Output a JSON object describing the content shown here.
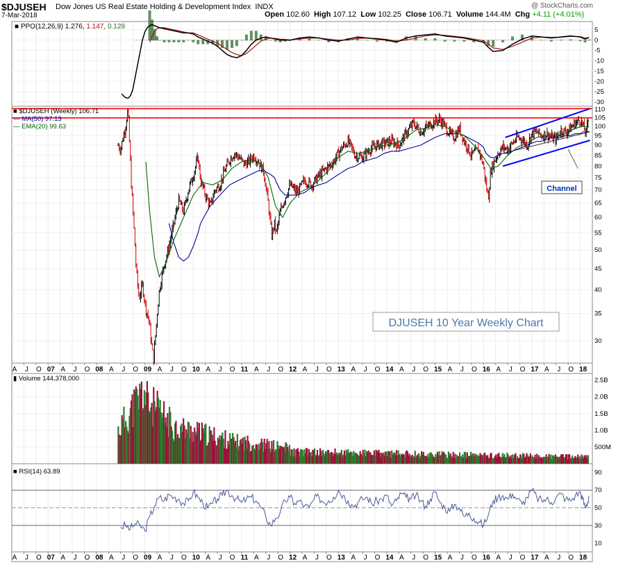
{
  "header": {
    "symbol": "$DJUSEH",
    "description": "Dow Jones US Real Estate Holding & Development Index",
    "exchange": "INDX",
    "date": "7-Mar-2018",
    "copyright": "@ StockCharts.com",
    "open_label": "Open",
    "open": "102.60",
    "high_label": "High",
    "high": "107.12",
    "low_label": "Low",
    "low": "102.25",
    "close_label": "Close",
    "close": "106.71",
    "volume_label": "Volume",
    "volume": "144.4M",
    "chg_label": "Chg",
    "chg": "+4.11 (+4.01%)",
    "chg_color": "#00a000"
  },
  "colors": {
    "up": "#000000",
    "down": "#cc0000",
    "ma50": "#000099",
    "ema20": "#006600",
    "resistance": "#ff0000",
    "channel": "#0000ff",
    "volume_up": "#2d7a2d",
    "volume_down": "#a0103c",
    "rsi": "#4a5a9a",
    "ppo": "#000000",
    "ppo_signal": "#aa1111",
    "ppo_hist": "#2d6b2d"
  },
  "chart_data": [
    {
      "type": "line",
      "panel": "ppo",
      "legend": "PPO(12,26,9) 1.276, 1.147, 0.129",
      "legend_parts": {
        "name": "PPO(12,26,9)",
        "ppo": "1.276,",
        "signal": "1.147,",
        "hist": "0.129"
      },
      "y_ticks": [
        "5",
        "0",
        "-5",
        "-10",
        "-15",
        "-20",
        "-25",
        "-30"
      ],
      "ylim": [
        -32,
        9
      ],
      "x": [
        2008.52,
        2008.58,
        2008.62,
        2008.66,
        2008.7,
        2008.75,
        2008.8,
        2008.85,
        2008.9,
        2008.95,
        2009.0,
        2009.05,
        2009.1,
        2009.15,
        2009.2,
        2009.25,
        2009.3,
        2009.4,
        2009.5,
        2009.6,
        2009.7,
        2009.8,
        2009.9,
        2010.0,
        2010.1,
        2010.2,
        2010.3,
        2010.4,
        2010.5,
        2010.6,
        2010.7,
        2010.8,
        2010.9,
        2011.0,
        2011.1,
        2011.2,
        2011.3,
        2011.4,
        2011.5,
        2011.6,
        2011.7,
        2011.8,
        2011.9,
        2012.0,
        2012.2,
        2012.4,
        2012.6,
        2012.8,
        2013.0,
        2013.2,
        2013.4,
        2013.6,
        2013.8,
        2014.0,
        2014.2,
        2014.4,
        2014.6,
        2014.8,
        2015.0,
        2015.2,
        2015.4,
        2015.6,
        2015.8,
        2016.0,
        2016.1,
        2016.2,
        2016.4,
        2016.6,
        2016.8,
        2017.0,
        2017.2,
        2017.4,
        2017.6,
        2017.8,
        2018.0,
        2018.1,
        2018.18
      ],
      "ppo": [
        -26,
        -27.5,
        -28,
        -28,
        -27,
        -24,
        -18,
        -12,
        -6,
        0,
        4,
        6,
        7,
        7.5,
        7,
        6.5,
        6,
        5.5,
        5,
        4.5,
        4,
        3.5,
        3.5,
        3,
        1.5,
        0.5,
        -0.5,
        -1.5,
        -3,
        -5,
        -7,
        -8,
        -8.5,
        -7.5,
        -5,
        -2,
        0,
        1,
        1.5,
        1,
        0.5,
        0,
        0,
        0,
        1,
        1.5,
        1,
        0,
        -0.5,
        0.5,
        1.5,
        1,
        0.5,
        0,
        -1,
        1,
        2,
        2.5,
        3,
        2,
        1.5,
        1,
        0,
        -1,
        -3.5,
        -5.5,
        -5,
        -2,
        0.5,
        2,
        1.5,
        1,
        1.5,
        2,
        1.5,
        0.5,
        1.276
      ],
      "signal": [
        null,
        null,
        null,
        null,
        null,
        null,
        null,
        null,
        null,
        null,
        null,
        null,
        -1,
        2,
        4,
        5.5,
        6,
        6,
        5.5,
        5,
        4.5,
        4,
        3.5,
        3.5,
        2.5,
        1.5,
        0.5,
        -0.5,
        -1.5,
        -3,
        -4.5,
        -6,
        -7,
        -7.5,
        -6.5,
        -4.5,
        -2.5,
        -0.5,
        0.5,
        1,
        0.8,
        0.5,
        0.3,
        0.1,
        0.6,
        1,
        1,
        0.5,
        0,
        0,
        0.8,
        1,
        0.8,
        0.3,
        -0.5,
        0,
        1,
        2,
        2.5,
        2.3,
        1.8,
        1.3,
        0.5,
        -0.3,
        -2,
        -3.8,
        -4.5,
        -3,
        -1,
        1,
        1.5,
        1.3,
        1.4,
        1.8,
        1.7,
        1,
        1.147
      ]
    },
    {
      "type": "line",
      "panel": "price",
      "legend_price": "$DJUSEH (Weekly) 106.71",
      "legend_ma": "MA(50) 97.13",
      "legend_ema": "EMA(20) 99.63",
      "scale": "log",
      "y_ticks": [
        "110",
        "105",
        "100",
        "95",
        "90",
        "85",
        "80",
        "75",
        "70",
        "65",
        "60",
        "55",
        "50",
        "45",
        "40",
        "35",
        "30"
      ],
      "ylim": [
        26.5,
        112
      ],
      "x": [
        2008.45,
        2008.5,
        2008.55,
        2008.6,
        2008.65,
        2008.68,
        2008.72,
        2008.77,
        2008.82,
        2008.88,
        2008.95,
        2009.02,
        2009.08,
        2009.13,
        2009.18,
        2009.23,
        2009.3,
        2009.4,
        2009.5,
        2009.6,
        2009.7,
        2009.8,
        2009.9,
        2010.0,
        2010.1,
        2010.15,
        2010.25,
        2010.35,
        2010.45,
        2010.55,
        2010.65,
        2010.75,
        2010.85,
        2010.95,
        2011.05,
        2011.15,
        2011.25,
        2011.35,
        2011.45,
        2011.55,
        2011.62,
        2011.68,
        2011.72,
        2011.8,
        2011.9,
        2012.0,
        2012.15,
        2012.3,
        2012.45,
        2012.6,
        2012.75,
        2012.9,
        2013.05,
        2013.2,
        2013.35,
        2013.5,
        2013.65,
        2013.8,
        2013.95,
        2014.1,
        2014.25,
        2014.4,
        2014.55,
        2014.7,
        2014.85,
        2015.0,
        2015.1,
        2015.2,
        2015.3,
        2015.4,
        2015.5,
        2015.6,
        2015.75,
        2015.9,
        2016.0,
        2016.05,
        2016.1,
        2016.15,
        2016.22,
        2016.3,
        2016.4,
        2016.5,
        2016.6,
        2016.7,
        2016.8,
        2016.9,
        2017.0,
        2017.1,
        2017.2,
        2017.3,
        2017.4,
        2017.5,
        2017.6,
        2017.7,
        2017.8,
        2017.9,
        2018.0,
        2018.06,
        2018.12,
        2018.18
      ],
      "close": [
        90,
        88,
        94,
        100,
        110,
        92,
        72,
        58,
        45,
        38,
        41,
        36,
        34,
        30,
        27,
        32,
        40,
        46,
        51,
        58,
        66,
        62,
        70,
        76,
        84,
        74,
        68,
        64,
        70,
        72,
        78,
        83,
        86,
        84,
        81,
        82,
        85,
        82,
        78,
        65,
        54,
        58,
        55,
        62,
        67,
        72,
        69,
        74,
        72,
        76,
        79,
        82,
        88,
        92,
        85,
        84,
        88,
        90,
        91,
        92,
        90,
        96,
        102,
        97,
        100,
        103,
        104,
        100,
        96,
        94,
        99,
        92,
        85,
        88,
        80,
        72,
        67,
        78,
        82,
        86,
        89,
        88,
        91,
        94,
        93,
        90,
        96,
        97,
        95,
        96,
        94,
        93,
        98,
        97,
        99,
        102,
        104,
        100,
        96,
        106.71
      ],
      "ma50": [
        null,
        null,
        null,
        null,
        null,
        null,
        null,
        null,
        null,
        null,
        null,
        null,
        null,
        null,
        null,
        null,
        null,
        null,
        58,
        52,
        48,
        47,
        48,
        51,
        55,
        58,
        61,
        64,
        66,
        68,
        70,
        72,
        73,
        74,
        75,
        76,
        77,
        78,
        78,
        77,
        76,
        75,
        73,
        70,
        68,
        68,
        68,
        69,
        71,
        72,
        73,
        75,
        77,
        79,
        80,
        82,
        83,
        84,
        86,
        87,
        87,
        88,
        89,
        90,
        92,
        94,
        95,
        96,
        96,
        96,
        96,
        95,
        93,
        91,
        89,
        86,
        85,
        84,
        84,
        85,
        86,
        86,
        87,
        88,
        89,
        90,
        91,
        92,
        92,
        93,
        94,
        94,
        94,
        95,
        95,
        96,
        96,
        97,
        97,
        97.13
      ],
      "ema20": [
        null,
        null,
        null,
        null,
        null,
        null,
        null,
        null,
        null,
        null,
        null,
        null,
        null,
        null,
        null,
        null,
        null,
        null,
        null,
        null,
        null,
        null,
        null,
        null,
        null,
        null,
        null,
        null,
        null,
        null,
        null,
        null,
        null,
        null,
        null,
        null,
        null,
        null,
        null,
        null,
        null,
        null,
        null,
        null,
        null,
        null,
        null,
        null,
        null,
        null,
        null,
        null,
        null,
        null,
        null,
        null,
        null,
        null,
        null,
        null,
        null,
        null,
        null,
        null,
        null,
        null,
        null,
        null,
        null,
        null,
        null,
        null,
        null,
        null,
        null,
        null,
        null,
        null,
        null,
        null,
        null,
        null,
        null,
        null,
        null,
        null,
        null,
        null,
        null,
        null,
        null,
        null,
        null,
        null,
        null,
        null,
        null,
        null,
        null,
        99.63
      ],
      "ema20_path": [
        [
          2009.02,
          82
        ],
        [
          2009.1,
          62
        ],
        [
          2009.2,
          48
        ],
        [
          2009.3,
          43
        ],
        [
          2009.45,
          47
        ],
        [
          2009.6,
          53
        ],
        [
          2009.8,
          60
        ],
        [
          2010.0,
          68
        ],
        [
          2010.2,
          73
        ],
        [
          2010.4,
          72
        ],
        [
          2010.6,
          74
        ],
        [
          2010.8,
          79
        ],
        [
          2011.0,
          82
        ],
        [
          2011.2,
          83
        ],
        [
          2011.4,
          81
        ],
        [
          2011.55,
          75
        ],
        [
          2011.7,
          64
        ],
        [
          2011.85,
          60
        ],
        [
          2012.0,
          65
        ],
        [
          2012.2,
          69
        ],
        [
          2012.4,
          71
        ],
        [
          2012.6,
          74
        ],
        [
          2012.8,
          78
        ],
        [
          2013.0,
          84
        ],
        [
          2013.2,
          87
        ],
        [
          2013.4,
          86
        ],
        [
          2013.6,
          87
        ],
        [
          2013.8,
          89
        ],
        [
          2014.0,
          90
        ],
        [
          2014.2,
          91
        ],
        [
          2014.4,
          94
        ],
        [
          2014.6,
          98
        ],
        [
          2014.8,
          99
        ],
        [
          2015.0,
          101
        ],
        [
          2015.2,
          100
        ],
        [
          2015.4,
          97
        ],
        [
          2015.6,
          95
        ],
        [
          2015.8,
          90
        ],
        [
          2016.0,
          84
        ],
        [
          2016.15,
          79
        ],
        [
          2016.3,
          80
        ],
        [
          2016.5,
          85
        ],
        [
          2016.7,
          89
        ],
        [
          2016.9,
          91
        ],
        [
          2017.1,
          94
        ],
        [
          2017.3,
          95
        ],
        [
          2017.5,
          95
        ],
        [
          2017.7,
          96
        ],
        [
          2017.9,
          99
        ],
        [
          2018.05,
          100
        ],
        [
          2018.18,
          99.63
        ]
      ],
      "annotations": {
        "channel_label": "Channel",
        "chart_title_box": "DJUSEH 10 Year Weekly Chart",
        "resistance_levels": [
          110.5,
          104.9
        ],
        "channel_upper": [
          [
            2016.45,
            94
          ],
          [
            2018.2,
            110.5
          ]
        ],
        "channel_lower": [
          [
            2016.4,
            80
          ],
          [
            2018.2,
            92.5
          ]
        ],
        "channel_mid": [
          [
            2016.4,
            86
          ],
          [
            2018.2,
            97
          ]
        ]
      }
    },
    {
      "type": "bar",
      "panel": "volume",
      "legend": "Volume 144,378,000",
      "y_ticks": [
        "2.5B",
        "2.0B",
        "1.5B",
        "1.0B",
        "500M"
      ],
      "ylim": [
        0,
        2.7
      ]
    },
    {
      "type": "line",
      "panel": "rsi",
      "legend": "RSI(14) 63.89",
      "y_ticks": [
        "90",
        "70",
        "50",
        "30",
        "10"
      ],
      "ylim": [
        0,
        100
      ],
      "guides": [
        70,
        50,
        30
      ],
      "x": [
        2008.5,
        2008.6,
        2008.7,
        2008.8,
        2008.9,
        2009.0,
        2009.1,
        2009.2,
        2009.3,
        2009.4,
        2009.5,
        2009.6,
        2009.7,
        2009.8,
        2009.9,
        2010.0,
        2010.1,
        2010.2,
        2010.3,
        2010.4,
        2010.5,
        2010.6,
        2010.7,
        2010.8,
        2010.9,
        2011.0,
        2011.1,
        2011.2,
        2011.3,
        2011.4,
        2011.5,
        2011.6,
        2011.7,
        2011.8,
        2011.9,
        2012.0,
        2012.1,
        2012.2,
        2012.3,
        2012.4,
        2012.5,
        2012.6,
        2012.7,
        2012.8,
        2012.9,
        2013.0,
        2013.1,
        2013.2,
        2013.3,
        2013.4,
        2013.5,
        2013.6,
        2013.7,
        2013.8,
        2013.9,
        2014.0,
        2014.1,
        2014.2,
        2014.3,
        2014.4,
        2014.5,
        2014.6,
        2014.7,
        2014.8,
        2014.9,
        2015.0,
        2015.1,
        2015.2,
        2015.3,
        2015.4,
        2015.5,
        2015.6,
        2015.7,
        2015.8,
        2015.9,
        2016.0,
        2016.1,
        2016.2,
        2016.3,
        2016.4,
        2016.5,
        2016.6,
        2016.7,
        2016.8,
        2016.9,
        2017.0,
        2017.1,
        2017.2,
        2017.3,
        2017.4,
        2017.5,
        2017.6,
        2017.7,
        2017.8,
        2017.9,
        2018.0,
        2018.05,
        2018.1,
        2018.15,
        2018.18
      ],
      "values": [
        28,
        30,
        26,
        32,
        30,
        24,
        40,
        52,
        62,
        58,
        65,
        62,
        60,
        55,
        58,
        68,
        62,
        55,
        50,
        55,
        60,
        64,
        70,
        64,
        60,
        56,
        60,
        62,
        58,
        50,
        40,
        30,
        38,
        45,
        58,
        62,
        55,
        58,
        52,
        50,
        60,
        62,
        56,
        58,
        62,
        70,
        64,
        58,
        52,
        56,
        60,
        62,
        54,
        58,
        60,
        64,
        52,
        58,
        66,
        62,
        60,
        64,
        58,
        52,
        60,
        68,
        56,
        50,
        46,
        54,
        50,
        40,
        44,
        38,
        34,
        30,
        42,
        58,
        62,
        64,
        60,
        66,
        60,
        54,
        62,
        70,
        62,
        58,
        60,
        56,
        62,
        66,
        60,
        58,
        64,
        68,
        60,
        50,
        56,
        63.89
      ]
    }
  ],
  "x_axis": {
    "labels": [
      "A",
      "J",
      "O",
      "07",
      "A",
      "J",
      "O",
      "08",
      "A",
      "J",
      "O",
      "09",
      "A",
      "J",
      "O",
      "10",
      "A",
      "J",
      "O",
      "11",
      "A",
      "J",
      "O",
      "12",
      "A",
      "J",
      "O",
      "13",
      "A",
      "J",
      "O",
      "14",
      "A",
      "J",
      "O",
      "15",
      "A",
      "J",
      "O",
      "16",
      "A",
      "J",
      "O",
      "17",
      "A",
      "J",
      "O",
      "18"
    ],
    "bold": [
      "07",
      "08",
      "09",
      "10",
      "11",
      "12",
      "13",
      "14",
      "15",
      "16",
      "17",
      "18"
    ],
    "start_year": 2006.25,
    "step": 0.25
  }
}
